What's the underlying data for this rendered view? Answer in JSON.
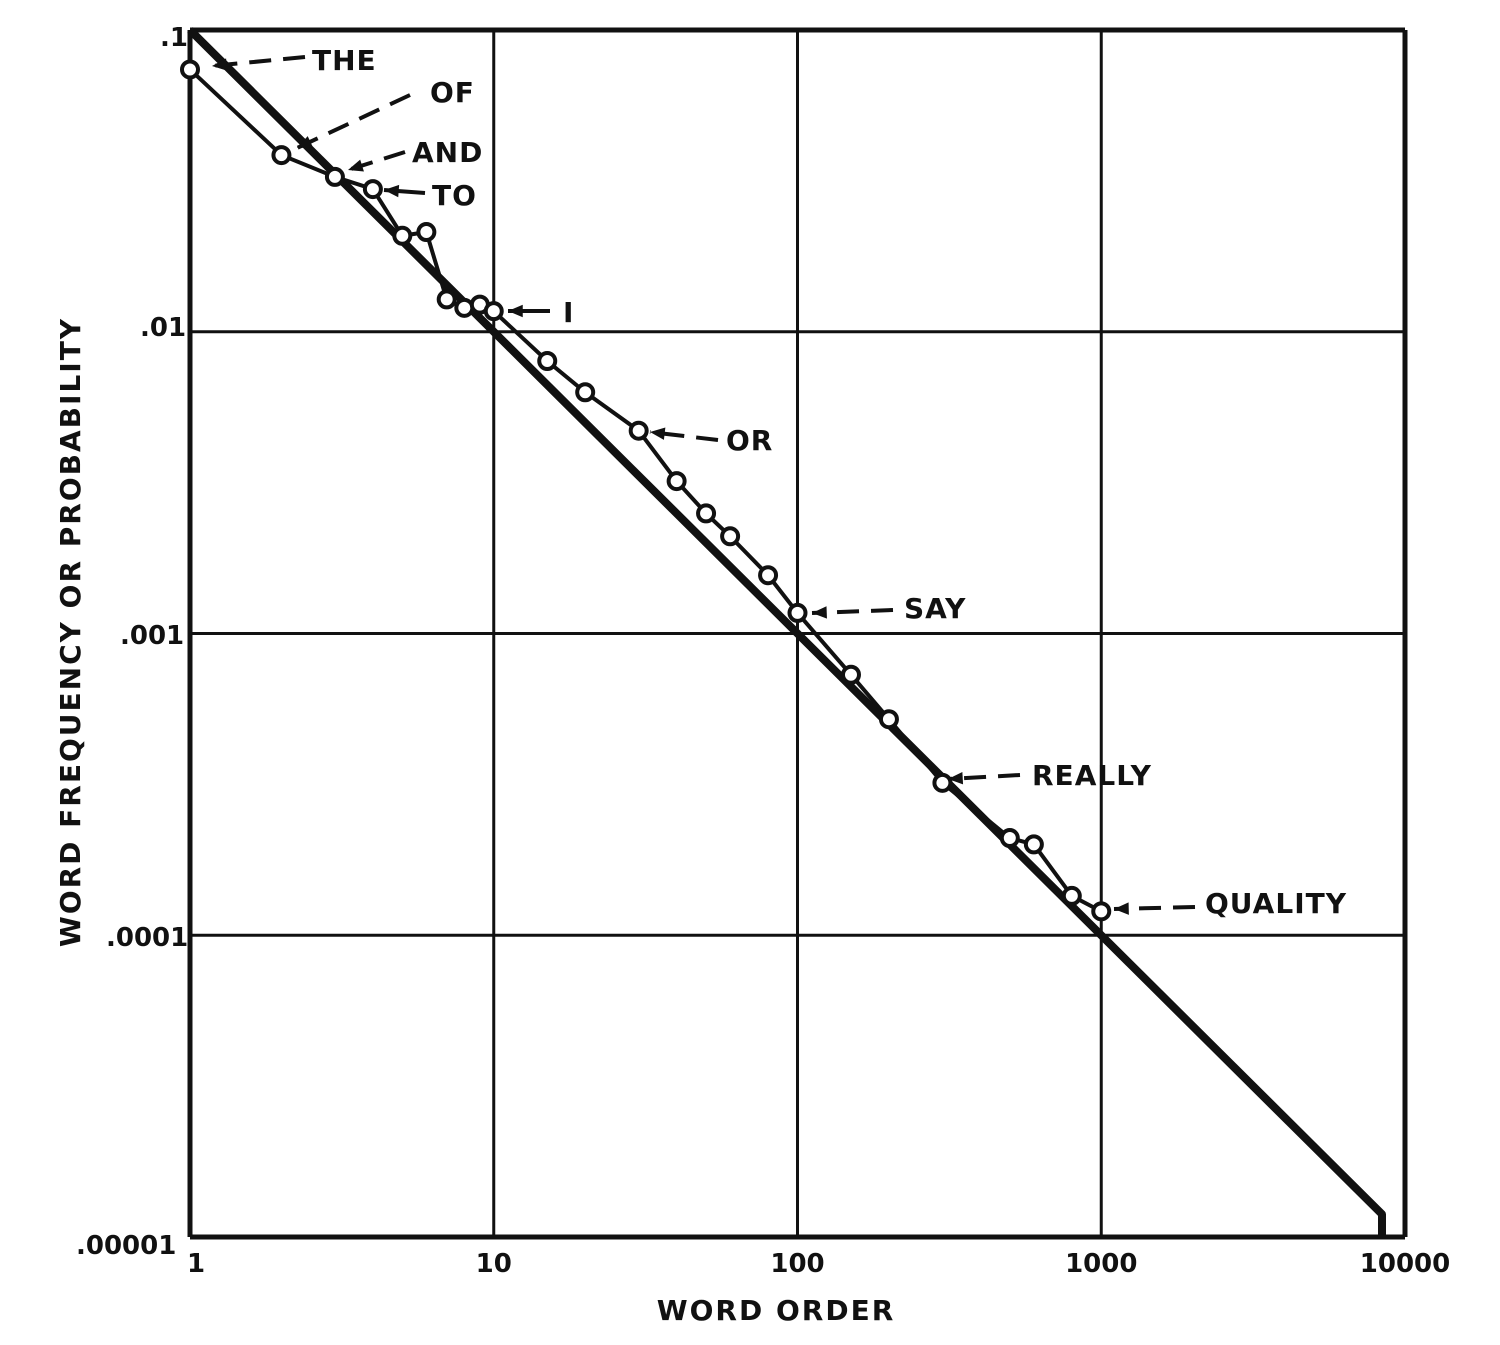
{
  "chart_data": {
    "type": "line",
    "title": "",
    "xlabel": "WORD ORDER",
    "ylabel": "WORD FREQUENCY OR PROBABILITY",
    "x_scale": "log",
    "y_scale": "log",
    "xlim": [
      1,
      10000
    ],
    "ylim": [
      1e-05,
      0.1
    ],
    "grid": true,
    "x_ticks": [
      "1",
      "10",
      "100",
      "1000",
      "10000"
    ],
    "x_tick_values": [
      1,
      10,
      100,
      1000,
      10000
    ],
    "y_ticks": [
      ".1",
      ".01",
      ".001",
      ".0001",
      ".00001"
    ],
    "y_tick_values": [
      0.1,
      0.01,
      0.001,
      0.0001,
      1e-05
    ],
    "series": [
      {
        "style": "line with open circle markers",
        "x": [
          1,
          2,
          3,
          4,
          5,
          6,
          7,
          8,
          9,
          10,
          15,
          20,
          30,
          40,
          50,
          60,
          80,
          100,
          150,
          200,
          300,
          500,
          600,
          800,
          1000
        ],
        "y": [
          0.074,
          0.0385,
          0.0326,
          0.0297,
          0.0208,
          0.0214,
          0.0128,
          0.012,
          0.0123,
          0.0117,
          0.008,
          0.0063,
          0.0047,
          0.0032,
          0.0025,
          0.0021,
          0.00156,
          0.00117,
          0.00073,
          0.00052,
          0.00032,
          0.00021,
          0.0002,
          0.000135,
          0.00012
        ]
      },
      {
        "style": "heavy straight line, frequency = 0.1 / rank",
        "x": [
          1,
          8400
        ],
        "y": [
          0.1,
          1.19e-05
        ]
      }
    ],
    "annotations": [
      {
        "text": "THE",
        "rank": 1
      },
      {
        "text": "OF",
        "rank": 2
      },
      {
        "text": "AND",
        "rank": 3
      },
      {
        "text": "TO",
        "rank": 4
      },
      {
        "text": "I",
        "rank": 10
      },
      {
        "text": "OR",
        "rank": 30
      },
      {
        "text": "SAY",
        "rank": 100
      },
      {
        "text": "REALLY",
        "rank": 300
      },
      {
        "text": "QUALITY",
        "rank": 1000
      }
    ]
  }
}
